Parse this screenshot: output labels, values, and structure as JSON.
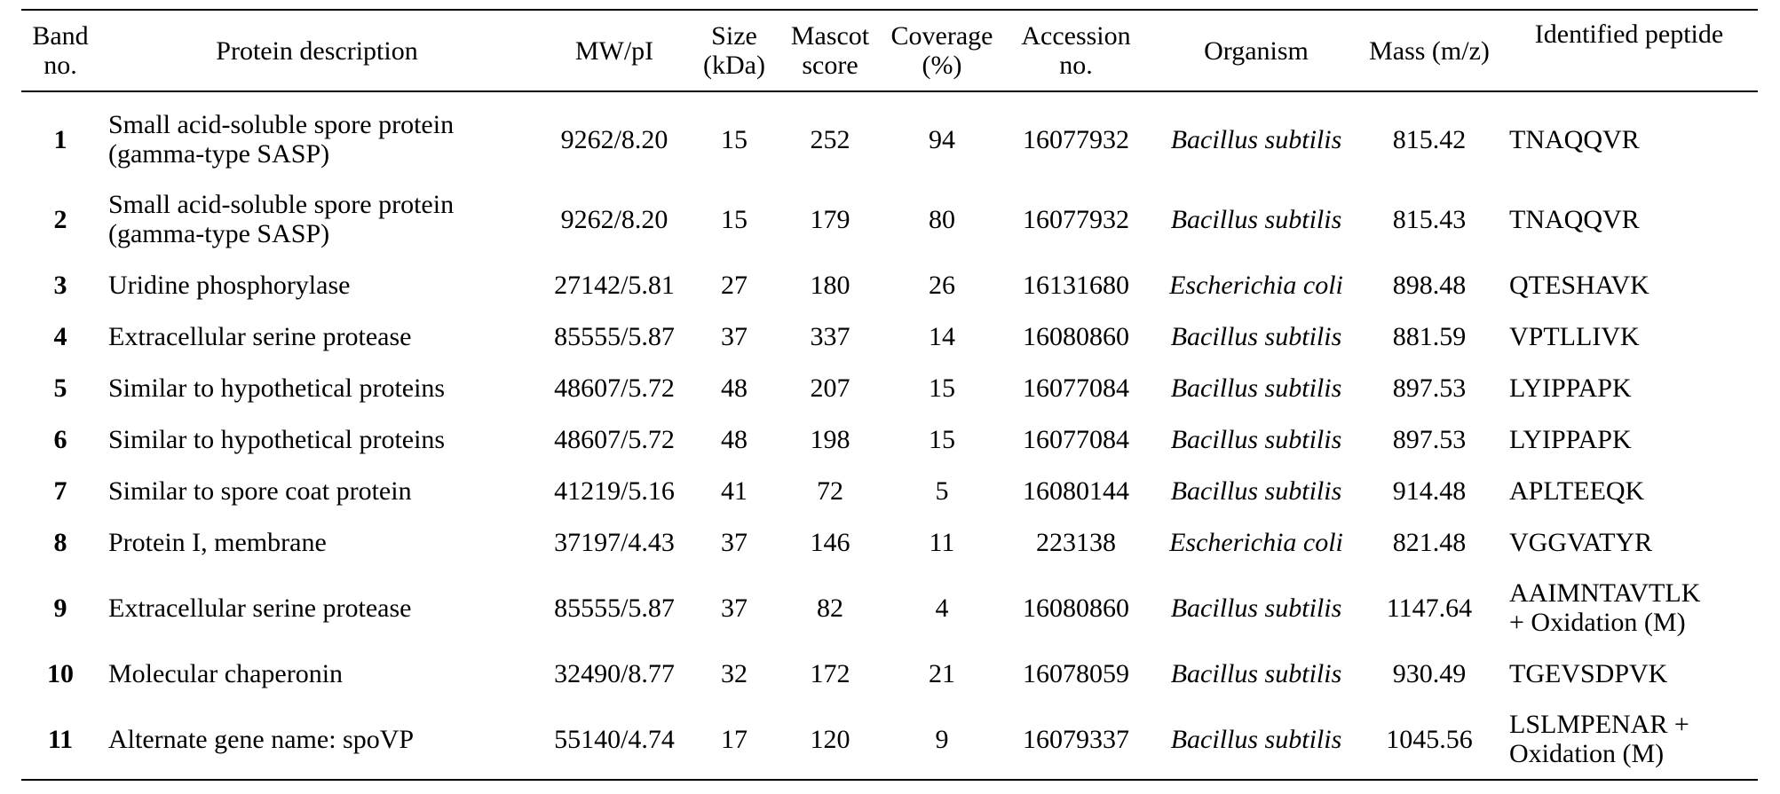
{
  "table": {
    "headers": [
      {
        "line1": "Band",
        "line2": "no."
      },
      {
        "line1": "Protein description",
        "line2": ""
      },
      {
        "line1": "MW/pI",
        "line2": ""
      },
      {
        "line1": "Size",
        "line2": "(kDa)"
      },
      {
        "line1": "Mascot",
        "line2": "score"
      },
      {
        "line1": "Coverage",
        "line2": "(%)"
      },
      {
        "line1": "Accession",
        "line2": "no."
      },
      {
        "line1": "Organism",
        "line2": ""
      },
      {
        "line1": "Mass (m/z)",
        "line2": ""
      },
      {
        "line1": "Identified peptide",
        "line2": ""
      }
    ],
    "rows": [
      {
        "band": "1",
        "desc1": "Small acid-soluble spore protein",
        "desc2": "(gamma-type SASP)",
        "mwpi": "9262/8.20",
        "size": "15",
        "score": "252",
        "coverage": "94",
        "accession": "16077932",
        "organism": "Bacillus subtilis",
        "mass": "815.42",
        "pep1": "TNAQQVR",
        "pep2": ""
      },
      {
        "band": "2",
        "desc1": "Small acid-soluble spore protein",
        "desc2": "(gamma-type SASP)",
        "mwpi": "9262/8.20",
        "size": "15",
        "score": "179",
        "coverage": "80",
        "accession": "16077932",
        "organism": "Bacillus subtilis",
        "mass": "815.43",
        "pep1": "TNAQQVR",
        "pep2": ""
      },
      {
        "band": "3",
        "desc1": "Uridine phosphorylase",
        "desc2": "",
        "mwpi": "27142/5.81",
        "size": "27",
        "score": "180",
        "coverage": "26",
        "accession": "16131680",
        "organism": "Escherichia coli",
        "mass": "898.48",
        "pep1": "QTESHAVK",
        "pep2": ""
      },
      {
        "band": "4",
        "desc1": "Extracellular serine protease",
        "desc2": "",
        "mwpi": "85555/5.87",
        "size": "37",
        "score": "337",
        "coverage": "14",
        "accession": "16080860",
        "organism": "Bacillus subtilis",
        "mass": "881.59",
        "pep1": "VPTLLIVK",
        "pep2": ""
      },
      {
        "band": "5",
        "desc1": "Similar to hypothetical proteins",
        "desc2": "",
        "mwpi": "48607/5.72",
        "size": "48",
        "score": "207",
        "coverage": "15",
        "accession": "16077084",
        "organism": "Bacillus subtilis",
        "mass": "897.53",
        "pep1": "LYIPPAPK",
        "pep2": ""
      },
      {
        "band": "6",
        "desc1": "Similar to hypothetical proteins",
        "desc2": "",
        "mwpi": "48607/5.72",
        "size": "48",
        "score": "198",
        "coverage": "15",
        "accession": "16077084",
        "organism": "Bacillus subtilis",
        "mass": "897.53",
        "pep1": "LYIPPAPK",
        "pep2": ""
      },
      {
        "band": "7",
        "desc1": "Similar to spore coat protein",
        "desc2": "",
        "mwpi": "41219/5.16",
        "size": "41",
        "score": "72",
        "coverage": "5",
        "accession": "16080144",
        "organism": "Bacillus subtilis",
        "mass": "914.48",
        "pep1": "APLTEEQK",
        "pep2": ""
      },
      {
        "band": "8",
        "desc1": "Protein I, membrane",
        "desc2": "",
        "mwpi": "37197/4.43",
        "size": "37",
        "score": "146",
        "coverage": "11",
        "accession": "223138",
        "organism": "Escherichia coli",
        "mass": "821.48",
        "pep1": "VGGVATYR",
        "pep2": ""
      },
      {
        "band": "9",
        "desc1": "Extracellular serine protease",
        "desc2": "",
        "mwpi": "85555/5.87",
        "size": "37",
        "score": "82",
        "coverage": "4",
        "accession": "16080860",
        "organism": "Bacillus subtilis",
        "mass": "1147.64",
        "pep1": "AAIMNTAVTLK",
        "pep2": "+ Oxidation (M)"
      },
      {
        "band": "10",
        "desc1": "Molecular chaperonin",
        "desc2": "",
        "mwpi": "32490/8.77",
        "size": "32",
        "score": "172",
        "coverage": "21",
        "accession": "16078059",
        "organism": "Bacillus subtilis",
        "mass": "930.49",
        "pep1": "TGEVSDPVK",
        "pep2": ""
      },
      {
        "band": "11",
        "desc1": "Alternate gene name: spoVP",
        "desc2": "",
        "mwpi": "55140/4.74",
        "size": "17",
        "score": "120",
        "coverage": "9",
        "accession": "16079337",
        "organism": "Bacillus subtilis",
        "mass": "1045.56",
        "pep1": "LSLMPENAR +",
        "pep2": "Oxidation (M)"
      }
    ]
  }
}
